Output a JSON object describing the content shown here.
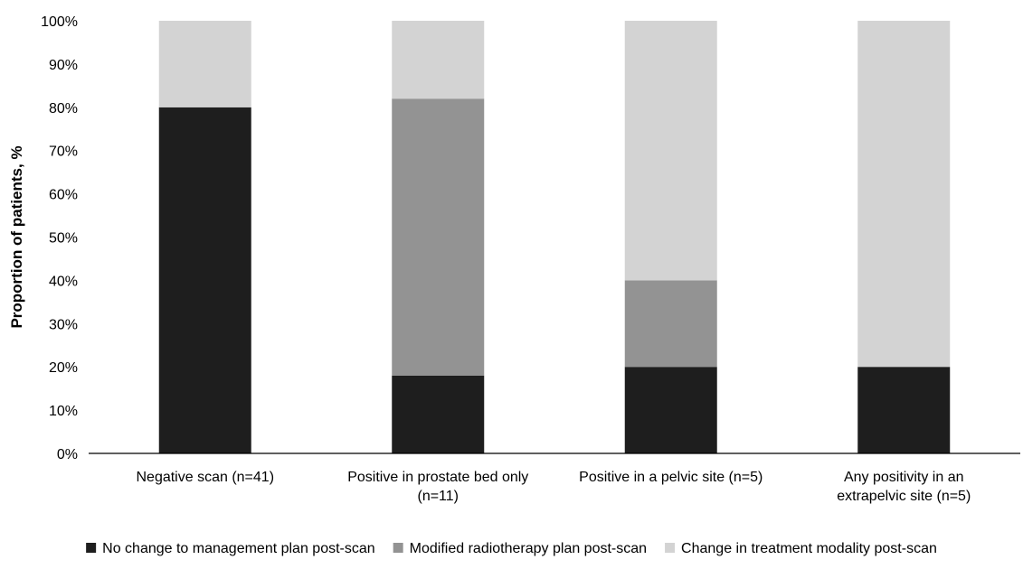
{
  "chart_data": {
    "type": "bar",
    "stacked": true,
    "categories": [
      [
        "Negative scan (n=41)"
      ],
      [
        "Positive in prostate bed only",
        "(n=11)"
      ],
      [
        "Positive in a pelvic site (n=5)"
      ],
      [
        "Any positivity in an",
        "extrapelvic site (n=5)"
      ]
    ],
    "series": [
      {
        "name": "No change to management plan post-scan",
        "color": "#1e1e1e",
        "values": [
          80,
          18,
          20,
          20
        ]
      },
      {
        "name": "Modified radiotherapy plan post-scan",
        "color": "#939393",
        "values": [
          0,
          64,
          20,
          0
        ]
      },
      {
        "name": "Change in treatment modality post-scan",
        "color": "#d3d3d3",
        "values": [
          20,
          18,
          60,
          80
        ]
      }
    ],
    "ylabel": "Proportion of patients, %",
    "xlabel": "",
    "ylim": [
      0,
      100
    ],
    "yticks": [
      "0%",
      "10%",
      "20%",
      "30%",
      "40%",
      "50%",
      "60%",
      "70%",
      "80%",
      "90%",
      "100%"
    ],
    "grid": false,
    "legend_position": "bottom"
  }
}
